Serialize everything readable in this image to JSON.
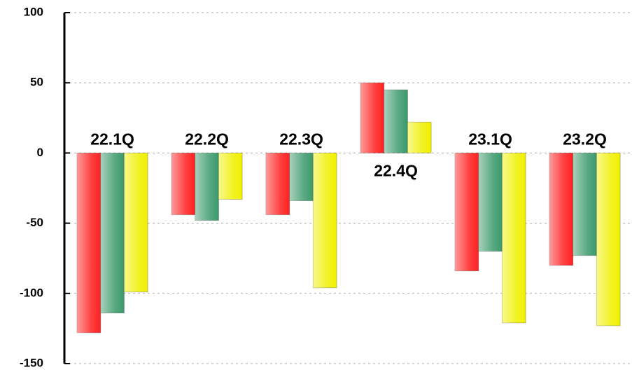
{
  "chart_data": {
    "type": "bar",
    "categories": [
      "22.1Q",
      "22.2Q",
      "22.3Q",
      "22.4Q",
      "23.1Q",
      "23.2Q"
    ],
    "series": [
      {
        "color": "#ff2020",
        "values": [
          -128,
          -44,
          -44,
          50,
          -84,
          -80
        ]
      },
      {
        "color": "#3c9a6c",
        "values": [
          -114,
          -48,
          -34,
          45,
          -70,
          -73
        ]
      },
      {
        "color": "#f0f000",
        "values": [
          -99,
          -33,
          -96,
          22,
          -121,
          -123
        ]
      }
    ],
    "ylim": [
      -150,
      100
    ],
    "yticks": [
      -150,
      -100,
      -50,
      0,
      50,
      100
    ],
    "grid": true
  }
}
